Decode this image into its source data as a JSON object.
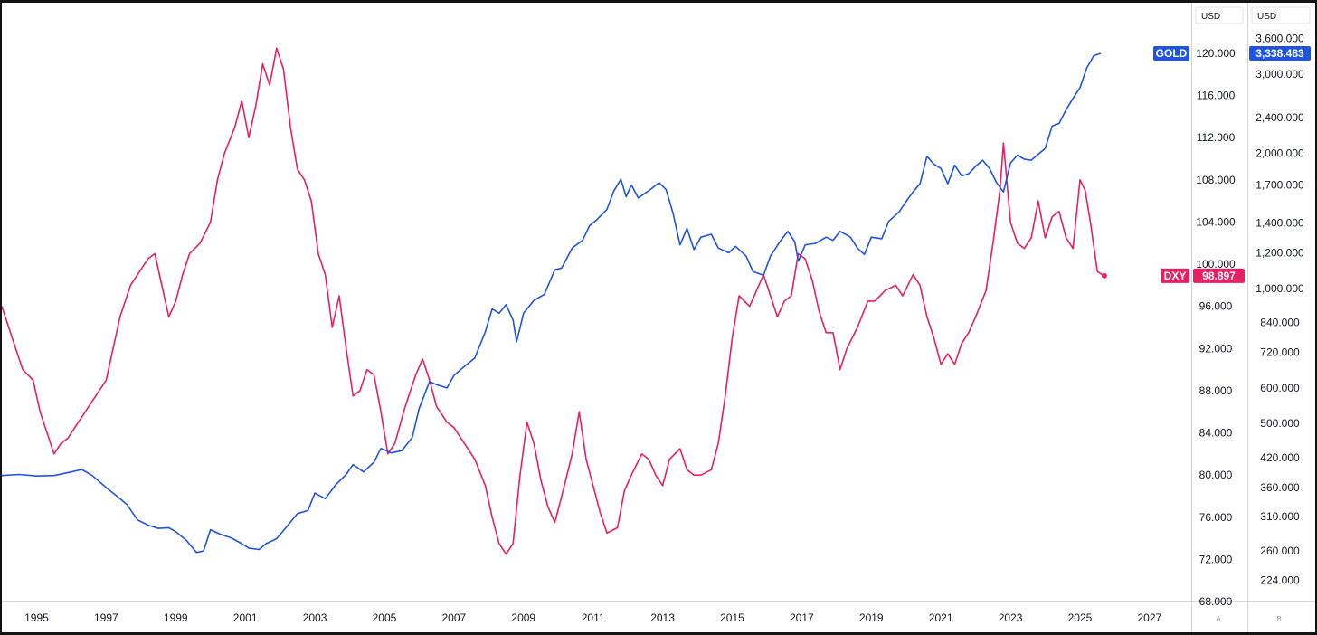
{
  "chart_data": {
    "type": "line",
    "x_ticks": [
      "1995",
      "1997",
      "1999",
      "2001",
      "2003",
      "2005",
      "2007",
      "2009",
      "2011",
      "2013",
      "2015",
      "2017",
      "2019",
      "2021",
      "2023",
      "2025",
      "2027"
    ],
    "xlim": [
      1994.0,
      2028.2
    ],
    "axis_a": {
      "currency": "USD",
      "footer": "A",
      "ticks": [
        "120.000",
        "116.000",
        "112.000",
        "108.000",
        "104.000",
        "100.000",
        "96.000",
        "92.000",
        "88.000",
        "84.000",
        "80.000",
        "76.000",
        "72.000",
        "68.000"
      ],
      "ylim": [
        68,
        120
      ]
    },
    "axis_b": {
      "currency": "USD",
      "footer": "B",
      "scale": "log",
      "ticks": [
        "3,600.000",
        "3,000.000",
        "2,400.000",
        "2,000.000",
        "1,700.000",
        "1,400.000",
        "1,200.000",
        "1,000.000",
        "840.000",
        "720.000",
        "600.000",
        "500.000",
        "420.000",
        "360.000",
        "310.000",
        "260.000",
        "224.000"
      ]
    },
    "series": [
      {
        "name": "DXY",
        "axis": "A",
        "color": "#e91e63",
        "last_label": "98.897",
        "points": [
          [
            1994.0,
            96.0
          ],
          [
            1994.3,
            93.0
          ],
          [
            1994.6,
            90.0
          ],
          [
            1994.9,
            89.0
          ],
          [
            1995.1,
            86.0
          ],
          [
            1995.3,
            84.0
          ],
          [
            1995.5,
            82.0
          ],
          [
            1995.7,
            83.0
          ],
          [
            1995.9,
            83.5
          ],
          [
            1996.1,
            84.5
          ],
          [
            1996.4,
            86.0
          ],
          [
            1996.7,
            87.5
          ],
          [
            1997.0,
            89.0
          ],
          [
            1997.2,
            92.0
          ],
          [
            1997.4,
            95.0
          ],
          [
            1997.7,
            98.0
          ],
          [
            1998.0,
            99.5
          ],
          [
            1998.2,
            100.5
          ],
          [
            1998.4,
            101.0
          ],
          [
            1998.6,
            98.0
          ],
          [
            1998.8,
            95.0
          ],
          [
            1999.0,
            96.5
          ],
          [
            1999.2,
            99.0
          ],
          [
            1999.4,
            101.0
          ],
          [
            1999.7,
            102.0
          ],
          [
            2000.0,
            104.0
          ],
          [
            2000.2,
            108.0
          ],
          [
            2000.4,
            110.5
          ],
          [
            2000.7,
            113.0
          ],
          [
            2000.9,
            115.5
          ],
          [
            2001.1,
            112.0
          ],
          [
            2001.3,
            115.0
          ],
          [
            2001.5,
            119.0
          ],
          [
            2001.7,
            117.0
          ],
          [
            2001.9,
            120.5
          ],
          [
            2002.1,
            118.5
          ],
          [
            2002.3,
            113.0
          ],
          [
            2002.5,
            109.0
          ],
          [
            2002.7,
            108.0
          ],
          [
            2002.9,
            106.0
          ],
          [
            2003.1,
            101.0
          ],
          [
            2003.3,
            99.0
          ],
          [
            2003.5,
            94.0
          ],
          [
            2003.7,
            97.0
          ],
          [
            2003.9,
            92.0
          ],
          [
            2004.1,
            87.5
          ],
          [
            2004.3,
            88.0
          ],
          [
            2004.5,
            90.0
          ],
          [
            2004.7,
            89.5
          ],
          [
            2004.9,
            86.0
          ],
          [
            2005.1,
            82.0
          ],
          [
            2005.3,
            83.0
          ],
          [
            2005.6,
            86.5
          ],
          [
            2005.9,
            89.5
          ],
          [
            2006.1,
            91.0
          ],
          [
            2006.3,
            89.0
          ],
          [
            2006.5,
            86.5
          ],
          [
            2006.8,
            85.0
          ],
          [
            2007.0,
            84.5
          ],
          [
            2007.3,
            83.0
          ],
          [
            2007.6,
            81.5
          ],
          [
            2007.9,
            79.0
          ],
          [
            2008.1,
            76.0
          ],
          [
            2008.3,
            73.5
          ],
          [
            2008.5,
            72.5
          ],
          [
            2008.7,
            73.5
          ],
          [
            2008.9,
            80.0
          ],
          [
            2009.1,
            85.0
          ],
          [
            2009.3,
            83.0
          ],
          [
            2009.5,
            79.5
          ],
          [
            2009.7,
            77.0
          ],
          [
            2009.9,
            75.5
          ],
          [
            2010.1,
            78.0
          ],
          [
            2010.4,
            82.0
          ],
          [
            2010.6,
            86.0
          ],
          [
            2010.8,
            81.5
          ],
          [
            2011.0,
            79.0
          ],
          [
            2011.2,
            76.5
          ],
          [
            2011.4,
            74.5
          ],
          [
            2011.7,
            75.0
          ],
          [
            2011.9,
            78.5
          ],
          [
            2012.1,
            80.0
          ],
          [
            2012.4,
            82.0
          ],
          [
            2012.6,
            81.5
          ],
          [
            2012.8,
            80.0
          ],
          [
            2013.0,
            79.0
          ],
          [
            2013.2,
            81.5
          ],
          [
            2013.5,
            82.5
          ],
          [
            2013.7,
            80.5
          ],
          [
            2013.9,
            80.0
          ],
          [
            2014.1,
            80.0
          ],
          [
            2014.4,
            80.5
          ],
          [
            2014.6,
            83.0
          ],
          [
            2014.8,
            87.5
          ],
          [
            2015.0,
            93.0
          ],
          [
            2015.2,
            97.0
          ],
          [
            2015.5,
            96.0
          ],
          [
            2015.7,
            97.5
          ],
          [
            2015.9,
            99.0
          ],
          [
            2016.1,
            97.0
          ],
          [
            2016.3,
            95.0
          ],
          [
            2016.5,
            96.5
          ],
          [
            2016.7,
            97.0
          ],
          [
            2016.9,
            101.0
          ],
          [
            2017.1,
            100.5
          ],
          [
            2017.3,
            98.5
          ],
          [
            2017.5,
            95.5
          ],
          [
            2017.7,
            93.5
          ],
          [
            2017.9,
            93.5
          ],
          [
            2018.1,
            90.0
          ],
          [
            2018.3,
            92.0
          ],
          [
            2018.6,
            94.0
          ],
          [
            2018.9,
            96.5
          ],
          [
            2019.1,
            96.5
          ],
          [
            2019.4,
            97.5
          ],
          [
            2019.7,
            98.0
          ],
          [
            2019.9,
            97.0
          ],
          [
            2020.2,
            99.0
          ],
          [
            2020.4,
            98.0
          ],
          [
            2020.6,
            95.0
          ],
          [
            2020.8,
            93.0
          ],
          [
            2021.0,
            90.5
          ],
          [
            2021.2,
            91.5
          ],
          [
            2021.4,
            90.5
          ],
          [
            2021.6,
            92.5
          ],
          [
            2021.8,
            93.5
          ],
          [
            2022.0,
            95.0
          ],
          [
            2022.3,
            97.5
          ],
          [
            2022.5,
            102.0
          ],
          [
            2022.7,
            107.0
          ],
          [
            2022.8,
            111.5
          ],
          [
            2023.0,
            104.0
          ],
          [
            2023.2,
            102.0
          ],
          [
            2023.4,
            101.5
          ],
          [
            2023.6,
            102.5
          ],
          [
            2023.8,
            106.0
          ],
          [
            2024.0,
            102.5
          ],
          [
            2024.2,
            104.5
          ],
          [
            2024.4,
            105.0
          ],
          [
            2024.6,
            102.5
          ],
          [
            2024.8,
            101.5
          ],
          [
            2025.0,
            108.0
          ],
          [
            2025.15,
            107.0
          ],
          [
            2025.3,
            104.0
          ],
          [
            2025.5,
            99.3
          ],
          [
            2025.7,
            98.897
          ]
        ]
      },
      {
        "name": "GOLD",
        "axis": "B",
        "color": "#1e53e5",
        "last_label": "3,338.483",
        "points": [
          [
            1994.0,
            383
          ],
          [
            1994.5,
            385
          ],
          [
            1995.0,
            382
          ],
          [
            1995.5,
            383
          ],
          [
            1996.0,
            390
          ],
          [
            1996.3,
            395
          ],
          [
            1996.6,
            383
          ],
          [
            1997.0,
            360
          ],
          [
            1997.3,
            345
          ],
          [
            1997.6,
            330
          ],
          [
            1997.9,
            305
          ],
          [
            1998.2,
            297
          ],
          [
            1998.5,
            292
          ],
          [
            1998.8,
            293
          ],
          [
            1999.0,
            287
          ],
          [
            1999.3,
            275
          ],
          [
            1999.6,
            258
          ],
          [
            1999.8,
            260
          ],
          [
            2000.0,
            290
          ],
          [
            2000.3,
            283
          ],
          [
            2000.6,
            278
          ],
          [
            2000.9,
            270
          ],
          [
            2001.1,
            264
          ],
          [
            2001.4,
            262
          ],
          [
            2001.6,
            270
          ],
          [
            2001.9,
            277
          ],
          [
            2002.2,
            295
          ],
          [
            2002.5,
            315
          ],
          [
            2002.8,
            320
          ],
          [
            2003.0,
            350
          ],
          [
            2003.3,
            340
          ],
          [
            2003.6,
            365
          ],
          [
            2003.9,
            385
          ],
          [
            2004.1,
            405
          ],
          [
            2004.4,
            390
          ],
          [
            2004.7,
            410
          ],
          [
            2004.9,
            440
          ],
          [
            2005.2,
            430
          ],
          [
            2005.5,
            435
          ],
          [
            2005.8,
            465
          ],
          [
            2006.0,
            540
          ],
          [
            2006.3,
            620
          ],
          [
            2006.5,
            610
          ],
          [
            2006.8,
            600
          ],
          [
            2007.0,
            640
          ],
          [
            2007.3,
            670
          ],
          [
            2007.6,
            700
          ],
          [
            2007.9,
            800
          ],
          [
            2008.1,
            900
          ],
          [
            2008.3,
            880
          ],
          [
            2008.5,
            920
          ],
          [
            2008.7,
            850
          ],
          [
            2008.8,
            760
          ],
          [
            2009.0,
            880
          ],
          [
            2009.3,
            940
          ],
          [
            2009.6,
            970
          ],
          [
            2009.9,
            1100
          ],
          [
            2010.1,
            1110
          ],
          [
            2010.4,
            1230
          ],
          [
            2010.7,
            1280
          ],
          [
            2010.9,
            1380
          ],
          [
            2011.1,
            1420
          ],
          [
            2011.4,
            1500
          ],
          [
            2011.6,
            1650
          ],
          [
            2011.8,
            1750
          ],
          [
            2011.95,
            1600
          ],
          [
            2012.1,
            1700
          ],
          [
            2012.3,
            1590
          ],
          [
            2012.6,
            1650
          ],
          [
            2012.9,
            1720
          ],
          [
            2013.1,
            1660
          ],
          [
            2013.3,
            1470
          ],
          [
            2013.5,
            1250
          ],
          [
            2013.7,
            1360
          ],
          [
            2013.9,
            1220
          ],
          [
            2014.1,
            1300
          ],
          [
            2014.4,
            1320
          ],
          [
            2014.6,
            1230
          ],
          [
            2014.9,
            1200
          ],
          [
            2015.1,
            1240
          ],
          [
            2015.4,
            1180
          ],
          [
            2015.6,
            1090
          ],
          [
            2015.9,
            1070
          ],
          [
            2016.1,
            1180
          ],
          [
            2016.4,
            1280
          ],
          [
            2016.6,
            1340
          ],
          [
            2016.8,
            1270
          ],
          [
            2016.9,
            1150
          ],
          [
            2017.1,
            1250
          ],
          [
            2017.4,
            1260
          ],
          [
            2017.7,
            1300
          ],
          [
            2017.9,
            1280
          ],
          [
            2018.1,
            1340
          ],
          [
            2018.4,
            1300
          ],
          [
            2018.6,
            1230
          ],
          [
            2018.8,
            1190
          ],
          [
            2019.0,
            1300
          ],
          [
            2019.3,
            1290
          ],
          [
            2019.5,
            1410
          ],
          [
            2019.8,
            1480
          ],
          [
            2020.0,
            1560
          ],
          [
            2020.2,
            1640
          ],
          [
            2020.4,
            1710
          ],
          [
            2020.6,
            1970
          ],
          [
            2020.8,
            1890
          ],
          [
            2021.0,
            1850
          ],
          [
            2021.2,
            1710
          ],
          [
            2021.4,
            1880
          ],
          [
            2021.6,
            1780
          ],
          [
            2021.8,
            1800
          ],
          [
            2022.0,
            1870
          ],
          [
            2022.2,
            1930
          ],
          [
            2022.4,
            1850
          ],
          [
            2022.6,
            1720
          ],
          [
            2022.8,
            1640
          ],
          [
            2023.0,
            1900
          ],
          [
            2023.2,
            1980
          ],
          [
            2023.4,
            1940
          ],
          [
            2023.6,
            1930
          ],
          [
            2023.8,
            1990
          ],
          [
            2024.0,
            2050
          ],
          [
            2024.2,
            2300
          ],
          [
            2024.4,
            2330
          ],
          [
            2024.6,
            2500
          ],
          [
            2024.8,
            2650
          ],
          [
            2025.0,
            2800
          ],
          [
            2025.2,
            3100
          ],
          [
            2025.4,
            3300
          ],
          [
            2025.6,
            3338.483
          ]
        ]
      }
    ]
  }
}
